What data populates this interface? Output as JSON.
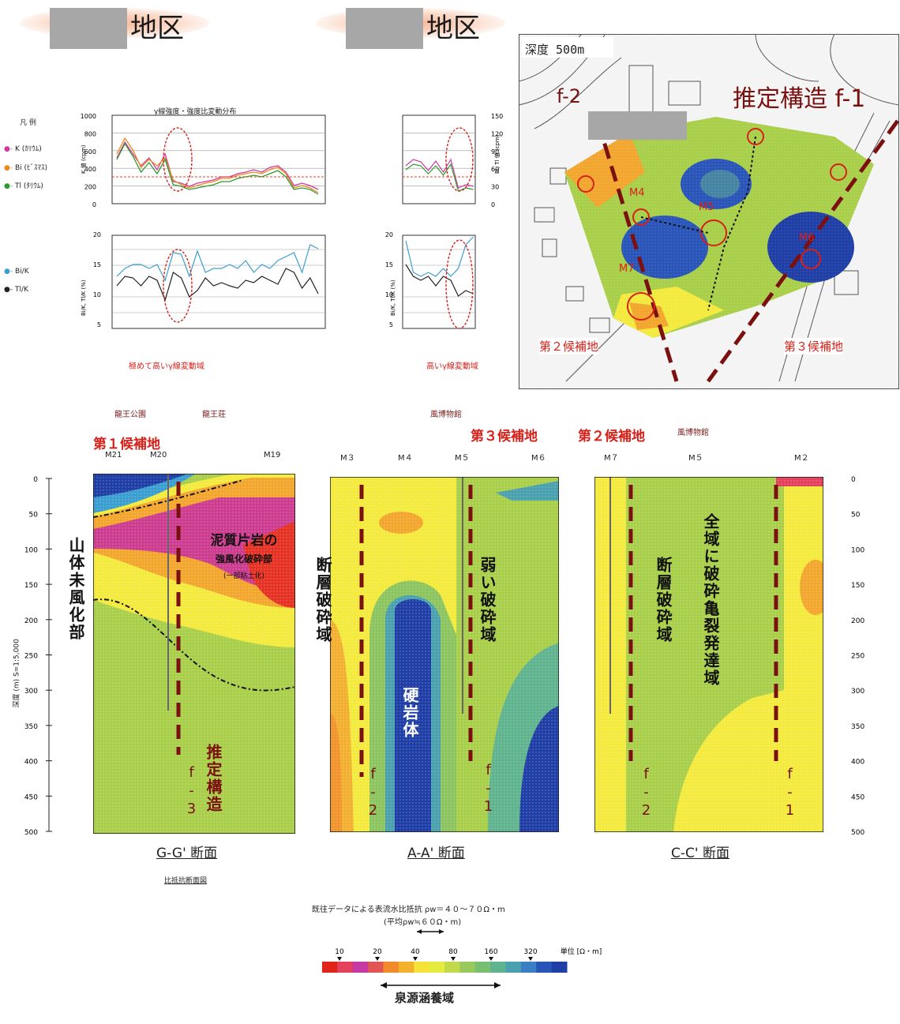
{
  "headers": [
    {
      "suffix": "地区"
    },
    {
      "suffix": "地区"
    }
  ],
  "gamma_chart": {
    "title": "γ線強度・強度比変動分布",
    "legend_title": "凡 例",
    "legend_top": [
      "K (ｶﾘｳﾑ)",
      "Bi (ﾋﾞｽﾏｽ)",
      "Tl (ﾀﾘｳﾑ)"
    ],
    "legend_bottom": [
      "Bi/K",
      "Tl/K"
    ],
    "ylabel_top": "K 値 (cpm)",
    "ylabel_top_right": "Bi, Tl 値 (cpm)",
    "ylabel_bottom": "Bi/K, Tl/K (%)",
    "note_left": "極めて高いγ線変動域",
    "note_right": "高いγ線変動域",
    "yticks_top_left": [
      "1000",
      "800",
      "600",
      "400",
      "200",
      "0"
    ],
    "yticks_top_right": [
      "150",
      "120",
      "90",
      "60",
      "30",
      "0"
    ],
    "yticks_bottom": [
      "20",
      "15",
      "10",
      "5"
    ]
  },
  "locations": {
    "ryuo_park": "龍王公園",
    "ryuo_so": "龍王荘",
    "museum": "風博物館"
  },
  "candidates": {
    "first": "第１候補地",
    "second": "第２候補地",
    "third": "第３候補地"
  },
  "stations": {
    "m21": "M21",
    "m20": "M20",
    "m19": "M19",
    "m3": "M３",
    "m4": "M４",
    "m5a": "M５",
    "m6": "M６",
    "m7": "M７",
    "m5b": "M５",
    "m2": "M２"
  },
  "section_labels": {
    "gg": "G-G' 断面",
    "aa": "A-A' 断面",
    "cc": "C-C' 断面",
    "sub": "比抵抗断面図"
  },
  "depth_axis": {
    "label": "深度 (m)  S=1:5,000",
    "ticks": [
      "0",
      "50",
      "100",
      "150",
      "200",
      "250",
      "300",
      "350",
      "400",
      "450",
      "500"
    ]
  },
  "annotations": {
    "yamatai": "山体未風化部",
    "deishitsu1": "泥質片岩の",
    "deishitsu2": "強風化破砕部",
    "deishitsu3": "(一部粘土化)",
    "suitei": "推定構造",
    "f3": "f-3",
    "danso1": "断層破砕域",
    "yowai": "弱い破砕域",
    "kogan": "硬岩体",
    "f2": "f-2",
    "f1": "f-1",
    "danso2": "断層破砕域",
    "zeniki": "全域に破砕亀裂発達域",
    "f2b": "f-2",
    "f1b": "f-1"
  },
  "map": {
    "depth_label": "深度 500m",
    "structure_label": "推定構造 f-1",
    "f2": "f-2",
    "cand2": "第２候補地",
    "cand3": "第３候補地",
    "points": [
      "M4",
      "M5",
      "M6",
      "M7",
      "M1",
      "M3"
    ]
  },
  "legend": {
    "title1": "既往データによる表流水比抵抗 ρw＝４０～７０Ω・m",
    "title2": "(平均ρw≒６０Ω・m)",
    "ticks": [
      "10",
      "20",
      "40",
      "80",
      "160",
      "320",
      "単位 [Ω・m]"
    ],
    "colors": [
      "#e0241b",
      "#e4415d",
      "#c63aa3",
      "#e25555",
      "#f08a2a",
      "#f4b12b",
      "#f7e23a",
      "#e6ec3d",
      "#c2d94a",
      "#98c95a",
      "#78bf72",
      "#5fb38e",
      "#4aa0ae",
      "#3a7fc4",
      "#2a55b8",
      "#1f3ea6"
    ],
    "bracket_label": "泉源涵養域"
  }
}
